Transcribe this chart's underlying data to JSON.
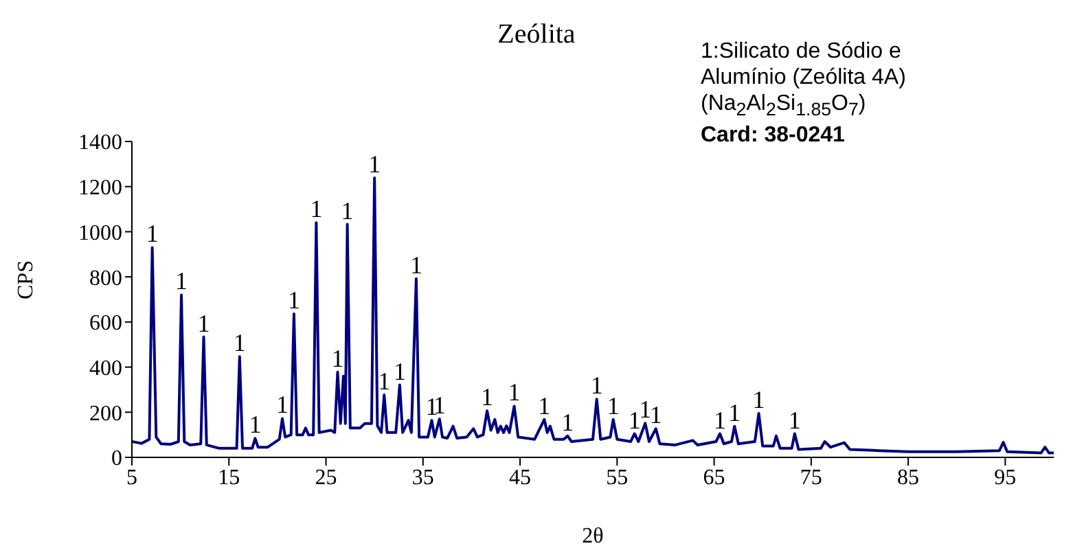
{
  "chart_data": {
    "type": "line",
    "title": "Zeólita",
    "xlabel": "2θ",
    "ylabel": "CPS",
    "xlim": [
      5,
      100
    ],
    "xticks": [
      5,
      15,
      25,
      35,
      45,
      55,
      65,
      75,
      85,
      95
    ],
    "ylim": [
      0,
      1400
    ],
    "yticks": [
      0,
      200,
      400,
      600,
      800,
      1000,
      1200,
      1400
    ],
    "grid": false,
    "legend": false,
    "marker": "none",
    "line_style": "solid",
    "series": [
      {
        "color": "#000080",
        "x": [
          5,
          6,
          6.8,
          7.1,
          7.5,
          8,
          9,
          9.8,
          10.1,
          10.4,
          11,
          12.1,
          12.4,
          12.7,
          14,
          15.8,
          16.1,
          16.4,
          17.4,
          17.7,
          18,
          19,
          20.2,
          20.5,
          20.8,
          21.4,
          21.7,
          22,
          22.6,
          22.9,
          23.2,
          23.7,
          24.0,
          24.3,
          25.5,
          25.9,
          26.2,
          26.5,
          26.8,
          27.0,
          27.2,
          27.5,
          28.5,
          29.0,
          29.7,
          30.0,
          30.3,
          30.7,
          31.0,
          31.3,
          32.2,
          32.6,
          32.9,
          33.5,
          33.8,
          34.3,
          34.6,
          35.5,
          35.9,
          36.2,
          36.7,
          37,
          37.5,
          38.1,
          38.5,
          39.5,
          40.2,
          40.6,
          41.2,
          41.6,
          42.0,
          42.4,
          42.7,
          43.0,
          43.3,
          43.6,
          43.9,
          44.4,
          44.8,
          46.5,
          47.5,
          47.8,
          48.1,
          48.5,
          49.5,
          49.9,
          50.3,
          52.5,
          52.9,
          53.3,
          54.3,
          54.6,
          55,
          56.4,
          56.8,
          57.2,
          57.9,
          58.3,
          59.0,
          59.4,
          61,
          62.8,
          63.3,
          65.2,
          65.6,
          66,
          66.8,
          67.1,
          67.5,
          69.2,
          69.6,
          70,
          71.1,
          71.4,
          71.8,
          73,
          73.3,
          73.7,
          76,
          76.4,
          77,
          78.4,
          79,
          82,
          85,
          90,
          94.4,
          94.8,
          95.2,
          98.7,
          99.1,
          99.5,
          100
        ],
        "values": [
          70,
          62,
          80,
          930,
          90,
          60,
          58,
          70,
          720,
          70,
          55,
          60,
          534,
          55,
          40,
          40,
          447,
          40,
          40,
          84,
          45,
          45,
          80,
          172,
          90,
          100,
          636,
          100,
          100,
          130,
          100,
          100,
          1040,
          110,
          120,
          110,
          378,
          150,
          360,
          150,
          1033,
          130,
          130,
          150,
          150,
          1239,
          140,
          110,
          277,
          110,
          110,
          321,
          110,
          164,
          110,
          792,
          90,
          90,
          164,
          90,
          170,
          90,
          85,
          138,
          85,
          90,
          127,
          90,
          100,
          206,
          120,
          168,
          110,
          138,
          110,
          140,
          110,
          227,
          90,
          80,
          168,
          110,
          138,
          80,
          80,
          95,
          70,
          80,
          258,
          80,
          90,
          168,
          80,
          70,
          105,
          70,
          151,
          70,
          127,
          60,
          55,
          75,
          55,
          70,
          105,
          60,
          70,
          138,
          60,
          70,
          195,
          50,
          50,
          95,
          40,
          40,
          105,
          35,
          40,
          70,
          45,
          65,
          35,
          30,
          25,
          25,
          30,
          67,
          25,
          20,
          45,
          20,
          20
        ]
      }
    ],
    "annotations": [
      "1:Silicato de Sódio e Alumínio (Zeólita 4A)",
      "(Na$_{2}$Al$_{2}$Si$_{1.85}$O$_{7}$)",
      "Card: 38-0241",
      {
        "text": "1",
        "x": 7.1,
        "y": 930
      },
      {
        "text": "1",
        "x": 10.1,
        "y": 720
      },
      {
        "text": "1",
        "x": 12.4,
        "y": 534
      },
      {
        "text": "1",
        "x": 16.1,
        "y": 447
      },
      {
        "text": "1",
        "x": 17.7,
        "y": 84
      },
      {
        "text": "1",
        "x": 20.5,
        "y": 172
      },
      {
        "text": "1",
        "x": 21.7,
        "y": 636
      },
      {
        "text": "1",
        "x": 24.0,
        "y": 1040
      },
      {
        "text": "1",
        "x": 26.2,
        "y": 378
      },
      {
        "text": "1",
        "x": 27.2,
        "y": 1033
      },
      {
        "text": "1",
        "x": 30.0,
        "y": 1239
      },
      {
        "text": "1",
        "x": 31.0,
        "y": 277
      },
      {
        "text": "1",
        "x": 32.6,
        "y": 321
      },
      {
        "text": "1",
        "x": 34.3,
        "y": 792
      },
      {
        "text": "1",
        "x": 35.9,
        "y": 164
      },
      {
        "text": "1",
        "x": 36.7,
        "y": 170
      },
      {
        "text": "1",
        "x": 41.6,
        "y": 206
      },
      {
        "text": "1",
        "x": 44.4,
        "y": 227
      },
      {
        "text": "1",
        "x": 47.5,
        "y": 168
      },
      {
        "text": "1",
        "x": 49.9,
        "y": 95
      },
      {
        "text": "1",
        "x": 52.9,
        "y": 258
      },
      {
        "text": "1",
        "x": 54.6,
        "y": 168
      },
      {
        "text": "1",
        "x": 56.8,
        "y": 105
      },
      {
        "text": "1",
        "x": 57.9,
        "y": 151
      },
      {
        "text": "1",
        "x": 59.0,
        "y": 127
      },
      {
        "text": "1",
        "x": 65.6,
        "y": 105
      },
      {
        "text": "1",
        "x": 67.1,
        "y": 138
      },
      {
        "text": "1",
        "x": 69.6,
        "y": 195
      },
      {
        "text": "1",
        "x": 73.3,
        "y": 105
      }
    ]
  }
}
